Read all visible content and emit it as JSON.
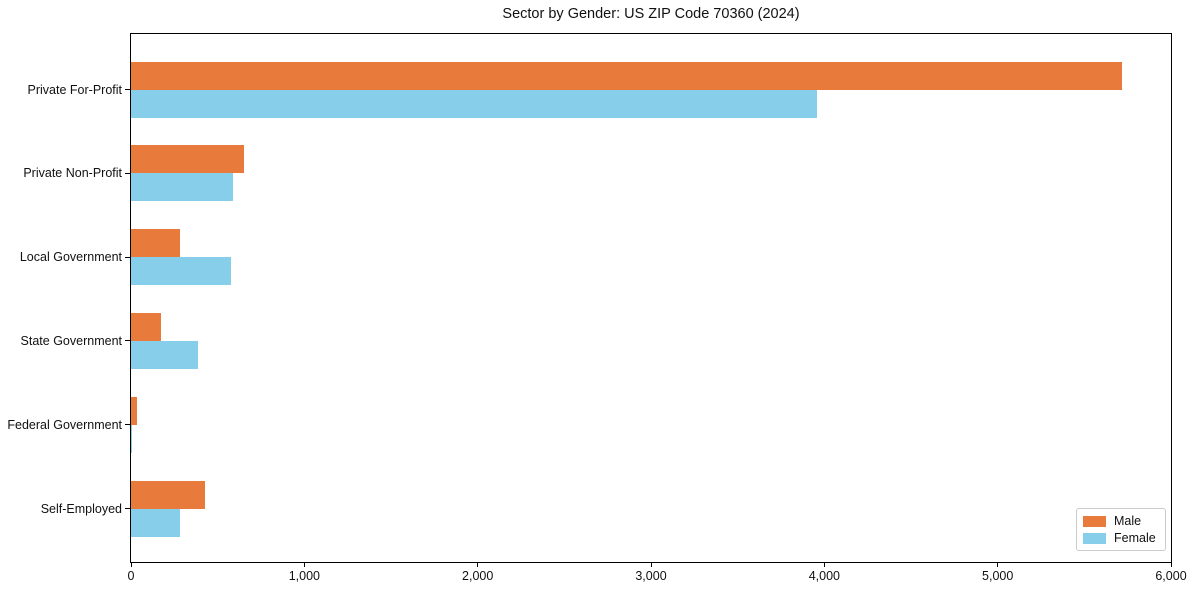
{
  "chart_data": {
    "type": "bar",
    "orientation": "horizontal",
    "title": "Sector by Gender: US ZIP Code 70360 (2024)",
    "xlabel": "",
    "ylabel": "",
    "categories": [
      "Private For-Profit",
      "Private Non-Profit",
      "Local Government",
      "State Government",
      "Federal Government",
      "Self-Employed"
    ],
    "series": [
      {
        "name": "Male",
        "color": "#e87a3c",
        "values": [
          5720,
          650,
          285,
          175,
          35,
          425
        ]
      },
      {
        "name": "Female",
        "color": "#87ceeb",
        "values": [
          3960,
          590,
          575,
          385,
          5,
          285
        ]
      }
    ],
    "xlim": [
      0,
      6000
    ],
    "xticks": [
      0,
      1000,
      2000,
      3000,
      4000,
      5000,
      6000
    ],
    "xtick_labels": [
      "0",
      "1,000",
      "2,000",
      "3,000",
      "4,000",
      "5,000",
      "6,000"
    ],
    "grid": false,
    "legend": {
      "position": "lower right",
      "entries": [
        "Male",
        "Female"
      ]
    }
  }
}
